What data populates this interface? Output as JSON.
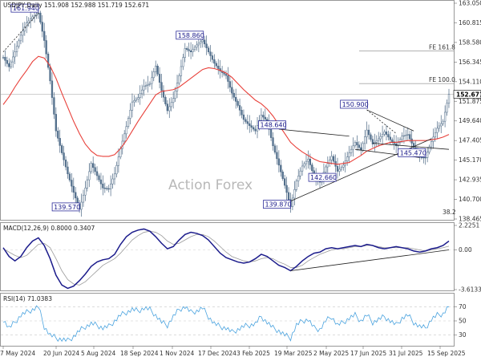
{
  "chart_data": [
    {
      "type": "candlestick",
      "title": "USDJPY,Daily",
      "ohlc": [
        "151.908",
        "152.988",
        "151.719",
        "152.671"
      ],
      "y_ticks": [
        "163.050",
        "160.815",
        "158.580",
        "156.345",
        "154.110",
        "151.875",
        "149.640",
        "147.405",
        "145.170",
        "142.935",
        "140.700",
        "138.465"
      ],
      "ylim": [
        138.465,
        163.05
      ],
      "x_ticks": [
        "7 May 2024",
        "20 Jun 2024",
        "5 Aug 2024",
        "18 Sep 2024",
        "1 Nov 2024",
        "17 Dec 2024",
        "3 Feb 2025",
        "19 Mar 2025",
        "2 May 2025",
        "17 Jun 2025",
        "31 Jul 2025",
        "15 Sep 2025"
      ],
      "close_series": [
        156.9,
        155.8,
        157.5,
        159.4,
        160.8,
        161.5,
        161.94,
        158.8,
        154.2,
        148.5,
        146.0,
        143.6,
        141.5,
        139.57,
        142.0,
        144.8,
        143.4,
        142.0,
        141.9,
        143.6,
        146.5,
        149.0,
        151.8,
        152.3,
        153.6,
        153.9,
        155.9,
        153.1,
        150.8,
        152.2,
        154.8,
        157.9,
        157.5,
        158.3,
        158.86,
        157.5,
        156.2,
        155.3,
        154.8,
        152.8,
        151.4,
        149.8,
        149.1,
        148.5,
        150.3,
        149.6,
        146.8,
        144.6,
        142.3,
        139.87,
        142.8,
        144.5,
        145.3,
        143.3,
        142.66,
        144.4,
        145.6,
        143.9,
        144.6,
        146.0,
        147.2,
        146.3,
        148.6,
        147.0,
        147.6,
        148.4,
        147.5,
        146.8,
        147.9,
        148.1,
        146.6,
        145.5,
        145.47,
        147.3,
        148.8,
        149.6,
        152.671
      ],
      "moving_average": [
        151.5,
        152.4,
        153.5,
        154.5,
        155.4,
        156.4,
        157.0,
        156.8,
        155.9,
        154.5,
        152.8,
        151.2,
        149.6,
        148.2,
        147.0,
        146.2,
        145.7,
        145.6,
        145.6,
        145.8,
        146.5,
        147.4,
        148.5,
        149.6,
        150.6,
        151.6,
        152.6,
        153.0,
        153.1,
        153.2,
        153.5,
        154.0,
        154.5,
        155.0,
        155.5,
        155.7,
        155.6,
        155.4,
        155.1,
        154.6,
        153.9,
        153.2,
        152.6,
        152.0,
        151.6,
        151.0,
        150.2,
        149.2,
        148.2,
        147.2,
        146.6,
        146.1,
        145.7,
        145.3,
        145.0,
        144.9,
        144.8,
        144.7,
        144.8,
        144.9,
        145.3,
        145.7,
        146.2,
        146.5,
        146.8,
        147.0,
        147.2,
        147.2,
        147.3,
        147.4,
        147.4,
        147.4,
        147.4,
        147.5,
        147.6,
        147.8,
        148.1
      ],
      "annotations": [
        {
          "text": "161.940",
          "x": "20 Jun 2024",
          "y": 161.94
        },
        {
          "text": "139.570",
          "x": "5 Aug 2024",
          "y": 139.57
        },
        {
          "text": "158.860",
          "x": "17 Dec 2024",
          "y": 158.86
        },
        {
          "text": "139.870",
          "x": "19 Mar 2025",
          "y": 139.87
        },
        {
          "text": "148.640",
          "x": "19 Mar 2025",
          "y": 148.64
        },
        {
          "text": "142.660",
          "x": "2 May 2025",
          "y": 142.66
        },
        {
          "text": "150.900",
          "x": "17 Jun 2025",
          "y": 150.9
        },
        {
          "text": "145.470",
          "x": "31 Jul 2025",
          "y": 145.47
        }
      ],
      "fib_levels": [
        {
          "label": "FE 161.8",
          "value": 157.6
        },
        {
          "label": "FE 100.0",
          "value": 153.9
        },
        {
          "label": "38.2",
          "value": 139.3
        }
      ],
      "current_price": "152.671",
      "watermark": "Action Forex"
    },
    {
      "type": "line",
      "title": "MACD(12,26,9) 0.8000 0.3407",
      "y_ticks": [
        "2.2251",
        "0.00",
        "-3.6133"
      ],
      "ylim": [
        -3.6133,
        2.2251
      ],
      "macd": [
        0.2,
        -0.6,
        -1.0,
        -0.6,
        0.2,
        0.8,
        1.1,
        0.4,
        -0.8,
        -2.3,
        -3.2,
        -3.5,
        -3.3,
        -2.8,
        -2.2,
        -1.5,
        -1.1,
        -0.9,
        -0.8,
        -0.4,
        0.5,
        1.2,
        1.6,
        1.8,
        1.9,
        1.7,
        1.2,
        0.6,
        0.1,
        0.3,
        0.9,
        1.4,
        1.6,
        1.5,
        1.3,
        0.9,
        0.3,
        -0.3,
        -0.7,
        -0.9,
        -1.1,
        -1.2,
        -1.1,
        -0.8,
        -0.4,
        -0.6,
        -1.0,
        -1.4,
        -1.6,
        -1.9,
        -1.5,
        -1.0,
        -0.6,
        -0.3,
        -0.2,
        0.1,
        0.2,
        0.1,
        0.2,
        0.3,
        0.4,
        0.3,
        0.5,
        0.4,
        0.2,
        0.1,
        0.2,
        0.3,
        0.2,
        0.1,
        -0.1,
        -0.2,
        -0.1,
        0.1,
        0.2,
        0.4,
        0.8
      ],
      "signal": [
        0.1,
        -0.2,
        -0.5,
        -0.7,
        -0.5,
        0.0,
        0.5,
        0.6,
        0.2,
        -0.8,
        -1.9,
        -2.7,
        -3.1,
        -3.2,
        -2.9,
        -2.4,
        -1.9,
        -1.4,
        -1.1,
        -0.8,
        -0.3,
        0.3,
        0.9,
        1.3,
        1.6,
        1.7,
        1.6,
        1.3,
        0.8,
        0.5,
        0.6,
        0.9,
        1.2,
        1.4,
        1.4,
        1.2,
        0.8,
        0.3,
        -0.2,
        -0.6,
        -0.8,
        -1.0,
        -1.1,
        -1.0,
        -0.8,
        -0.7,
        -0.8,
        -1.1,
        -1.3,
        -1.6,
        -1.6,
        -1.4,
        -1.0,
        -0.7,
        -0.4,
        -0.2,
        0.0,
        0.1,
        0.1,
        0.2,
        0.3,
        0.3,
        0.4,
        0.4,
        0.3,
        0.2,
        0.2,
        0.2,
        0.2,
        0.2,
        0.1,
        0.0,
        -0.1,
        0.0,
        0.1,
        0.2,
        0.34
      ]
    },
    {
      "type": "line",
      "title": "RSI(14) 71.0383",
      "y_ticks": [
        "70",
        "50",
        "30"
      ],
      "ylim": [
        15,
        85
      ],
      "values": [
        52,
        40,
        48,
        58,
        62,
        66,
        70,
        42,
        30,
        26,
        24,
        22,
        28,
        36,
        42,
        46,
        44,
        40,
        42,
        50,
        58,
        62,
        66,
        64,
        68,
        66,
        58,
        48,
        44,
        56,
        66,
        70,
        62,
        64,
        68,
        56,
        46,
        42,
        40,
        34,
        38,
        42,
        44,
        46,
        56,
        48,
        40,
        36,
        30,
        26,
        44,
        50,
        52,
        40,
        38,
        50,
        56,
        44,
        48,
        54,
        58,
        50,
        58,
        48,
        52,
        56,
        50,
        44,
        54,
        58,
        48,
        42,
        40,
        52,
        58,
        60,
        71
      ]
    }
  ]
}
